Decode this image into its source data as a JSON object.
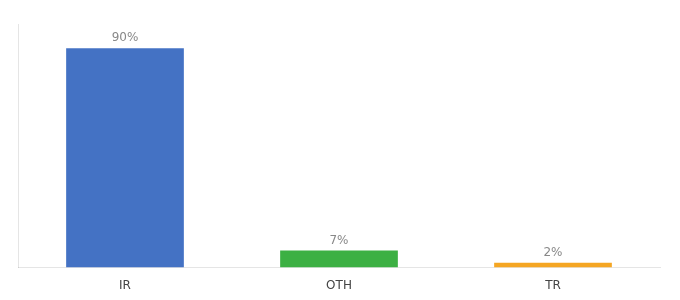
{
  "chart_data": {
    "type": "bar",
    "categories": [
      "IR",
      "OTH",
      "TR"
    ],
    "values": [
      90,
      7,
      2
    ],
    "value_labels": [
      "90%",
      "7%",
      "2%"
    ],
    "colors": [
      "#4472c4",
      "#3cb043",
      "#f5a623"
    ],
    "ylim": [
      0,
      100
    ],
    "grid": false,
    "data_labels": true,
    "tick_labels": "x"
  }
}
